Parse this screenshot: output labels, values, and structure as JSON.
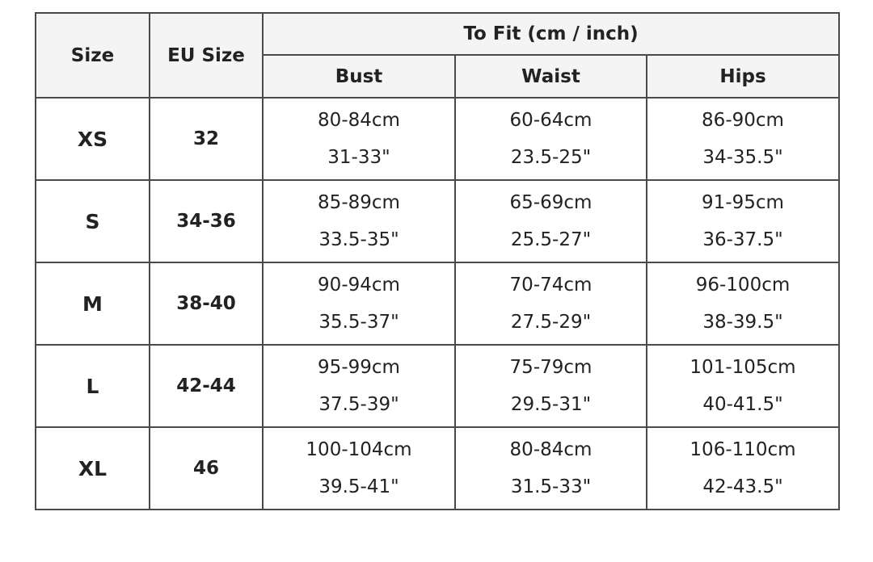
{
  "headers": {
    "size": "Size",
    "eu_size": "EU Size",
    "to_fit": "To Fit (cm / inch)",
    "bust": "Bust",
    "waist": "Waist",
    "hips": "Hips"
  },
  "rows": [
    {
      "size": "XS",
      "eu": "32",
      "bust_cm": "80-84cm",
      "bust_in": "31-33\"",
      "waist_cm": "60-64cm",
      "waist_in": "23.5-25\"",
      "hips_cm": "86-90cm",
      "hips_in": "34-35.5\""
    },
    {
      "size": "S",
      "eu": "34-36",
      "bust_cm": "85-89cm",
      "bust_in": "33.5-35\"",
      "waist_cm": "65-69cm",
      "waist_in": "25.5-27\"",
      "hips_cm": "91-95cm",
      "hips_in": "36-37.5\""
    },
    {
      "size": "M",
      "eu": "38-40",
      "bust_cm": "90-94cm",
      "bust_in": "35.5-37\"",
      "waist_cm": "70-74cm",
      "waist_in": "27.5-29\"",
      "hips_cm": "96-100cm",
      "hips_in": "38-39.5\""
    },
    {
      "size": "L",
      "eu": "42-44",
      "bust_cm": "95-99cm",
      "bust_in": "37.5-39\"",
      "waist_cm": "75-79cm",
      "waist_in": "29.5-31\"",
      "hips_cm": "101-105cm",
      "hips_in": "40-41.5\""
    },
    {
      "size": "XL",
      "eu": "46",
      "bust_cm": "100-104cm",
      "bust_in": "39.5-41\"",
      "waist_cm": "80-84cm",
      "waist_in": "31.5-33\"",
      "hips_cm": "106-110cm",
      "hips_in": "42-43.5\""
    }
  ]
}
